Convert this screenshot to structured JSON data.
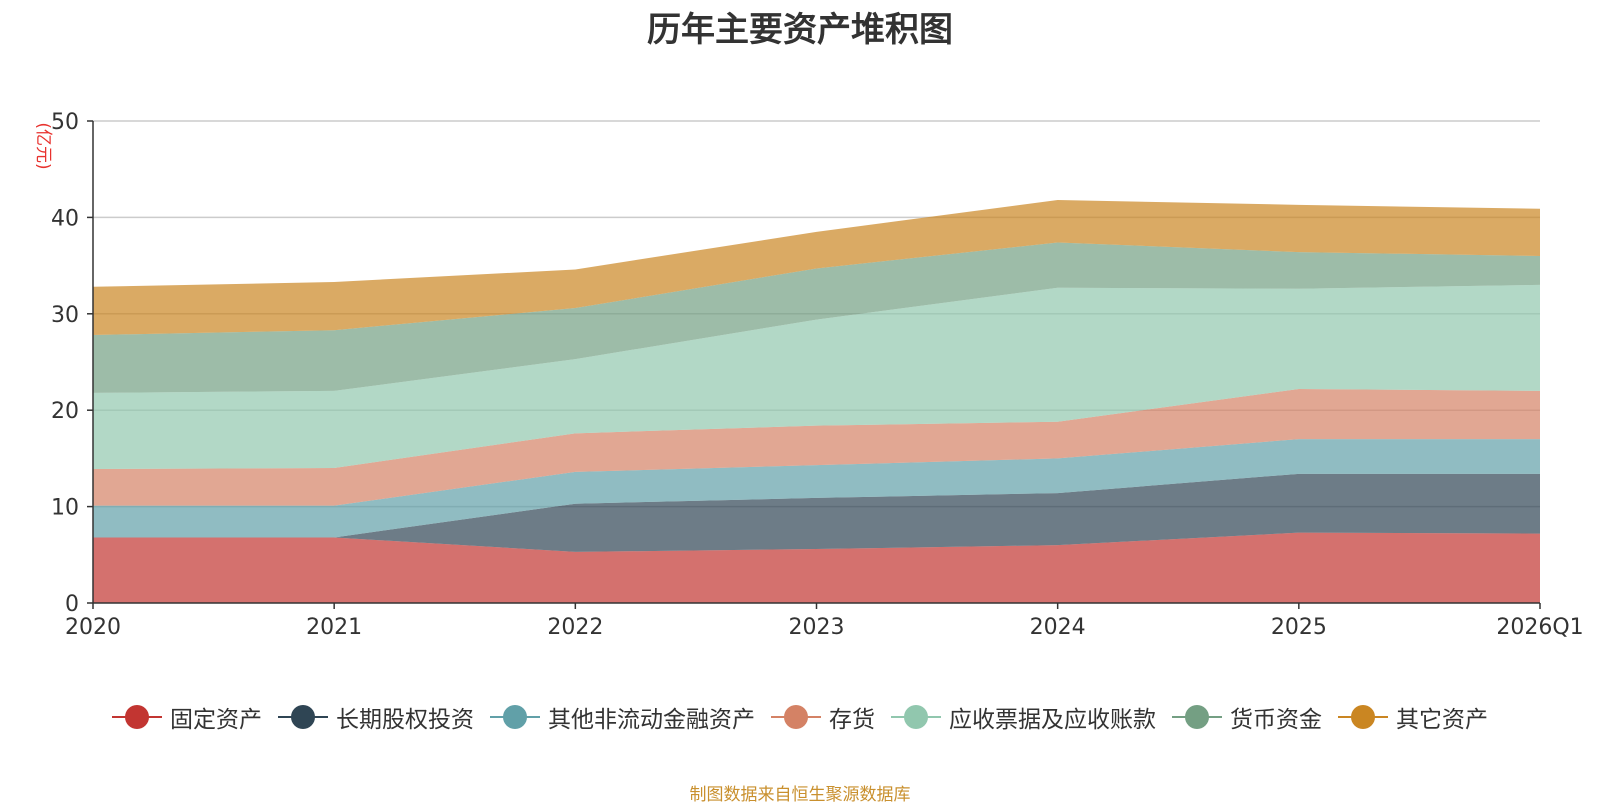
{
  "chart_data": {
    "type": "area",
    "stacked": true,
    "title": "历年主要资产堆积图",
    "ylabel": "(亿元)",
    "xlabel": "",
    "categories": [
      "2020",
      "2021",
      "2022",
      "2023",
      "2024",
      "2025",
      "2026Q1"
    ],
    "ylim": [
      0,
      50
    ],
    "yticks": [
      "0",
      "10",
      "20",
      "30",
      "40",
      "50"
    ],
    "grid": true,
    "legend_position": "bottom",
    "series": [
      {
        "name": "固定资产",
        "color": "#c23531",
        "values": [
          6.8,
          6.8,
          5.3,
          5.6,
          6.0,
          7.3,
          7.2
        ]
      },
      {
        "name": "长期股权投资",
        "color": "#2f4554",
        "values": [
          0.0,
          0.0,
          5.0,
          5.3,
          5.4,
          6.1,
          6.2
        ]
      },
      {
        "name": "其他非流动金融资产",
        "color": "#61a0a8",
        "values": [
          3.3,
          3.3,
          3.3,
          3.4,
          3.6,
          3.6,
          3.6
        ]
      },
      {
        "name": "存货",
        "color": "#d48265",
        "values": [
          3.8,
          3.9,
          4.0,
          4.1,
          3.8,
          5.2,
          5.0
        ]
      },
      {
        "name": "应收票据及应收账款",
        "color": "#91c7ae",
        "values": [
          7.9,
          8.0,
          7.7,
          11.0,
          13.9,
          10.4,
          11.0
        ]
      },
      {
        "name": "货币资金",
        "color": "#749f83",
        "values": [
          6.0,
          6.3,
          5.3,
          5.3,
          4.7,
          3.8,
          3.0
        ]
      },
      {
        "name": "其它资产",
        "color": "#ca8622",
        "values": [
          5.0,
          5.0,
          4.0,
          3.8,
          4.4,
          4.9,
          4.9
        ]
      }
    ]
  },
  "footer": {
    "source": "制图数据来自恒生聚源数据库"
  }
}
